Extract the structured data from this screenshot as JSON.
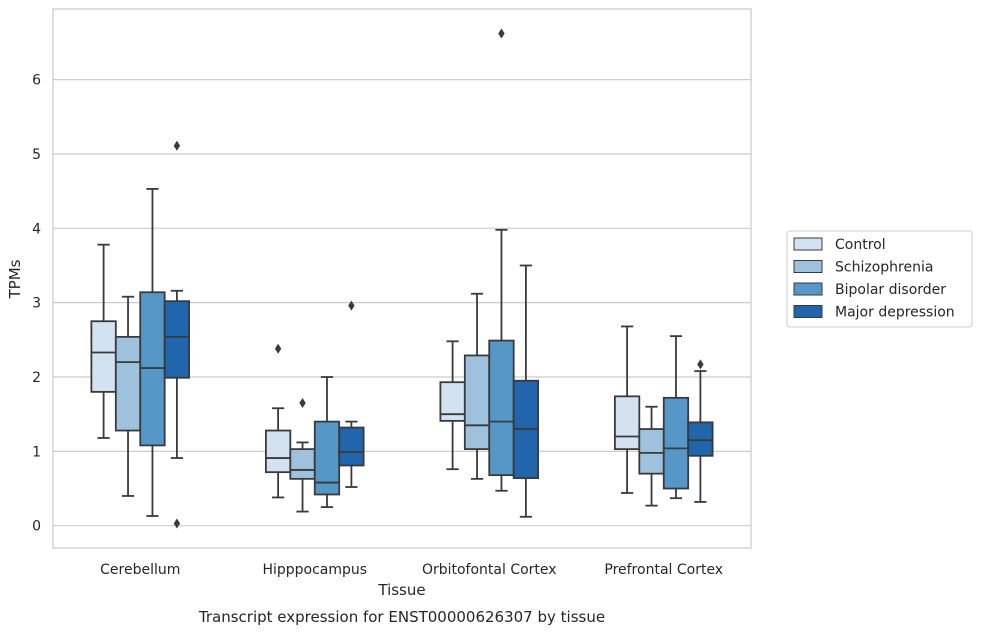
{
  "caption": "Transcript expression for ENST00000626307 by tissue",
  "chart_data": {
    "type": "box",
    "xlabel": "Tissue",
    "ylabel": "TPMs",
    "ylim": [
      -0.3,
      6.95
    ],
    "yticks": [
      0,
      1,
      2,
      3,
      4,
      5,
      6
    ],
    "grid": "horizontal",
    "legend_position": "right",
    "categories": [
      "Cerebellum",
      "Hipppocampus",
      "Orbitofontal Cortex",
      "Prefrontal Cortex"
    ],
    "series": [
      {
        "name": "Control",
        "color": "#d3e2f1",
        "boxes": [
          {
            "min": 1.18,
            "q1": 1.8,
            "median": 2.33,
            "q3": 2.75,
            "max": 3.78,
            "outliers": []
          },
          {
            "min": 0.38,
            "q1": 0.72,
            "median": 0.91,
            "q3": 1.28,
            "max": 1.58,
            "outliers": [
              2.38
            ]
          },
          {
            "min": 0.76,
            "q1": 1.41,
            "median": 1.5,
            "q3": 1.93,
            "max": 2.48,
            "outliers": []
          },
          {
            "min": 0.44,
            "q1": 1.03,
            "median": 1.2,
            "q3": 1.74,
            "max": 2.68,
            "outliers": []
          }
        ]
      },
      {
        "name": "Schizophrenia",
        "color": "#9ec2dd",
        "boxes": [
          {
            "min": 0.4,
            "q1": 1.28,
            "median": 2.2,
            "q3": 2.54,
            "max": 3.08,
            "outliers": []
          },
          {
            "min": 0.19,
            "q1": 0.63,
            "median": 0.75,
            "q3": 1.03,
            "max": 1.12,
            "outliers": [
              1.65
            ]
          },
          {
            "min": 0.63,
            "q1": 1.03,
            "median": 1.35,
            "q3": 2.29,
            "max": 3.12,
            "outliers": []
          },
          {
            "min": 0.27,
            "q1": 0.7,
            "median": 0.98,
            "q3": 1.3,
            "max": 1.6,
            "outliers": []
          }
        ]
      },
      {
        "name": "Bipolar disorder",
        "color": "#5598c8",
        "boxes": [
          {
            "min": 0.13,
            "q1": 1.08,
            "median": 2.12,
            "q3": 3.14,
            "max": 4.53,
            "outliers": []
          },
          {
            "min": 0.25,
            "q1": 0.42,
            "median": 0.58,
            "q3": 1.4,
            "max": 2.0,
            "outliers": []
          },
          {
            "min": 0.47,
            "q1": 0.68,
            "median": 1.4,
            "q3": 2.49,
            "max": 3.98,
            "outliers": [
              6.62
            ]
          },
          {
            "min": 0.37,
            "q1": 0.5,
            "median": 1.04,
            "q3": 1.72,
            "max": 2.55,
            "outliers": []
          }
        ]
      },
      {
        "name": "Major depression",
        "color": "#2166ac",
        "boxes": [
          {
            "min": 0.91,
            "q1": 1.99,
            "median": 2.54,
            "q3": 3.02,
            "max": 3.16,
            "outliers": [
              5.11,
              0.03
            ]
          },
          {
            "min": 0.52,
            "q1": 0.81,
            "median": 0.99,
            "q3": 1.32,
            "max": 1.4,
            "outliers": [
              2.96
            ]
          },
          {
            "min": 0.12,
            "q1": 0.64,
            "median": 1.3,
            "q3": 1.95,
            "max": 3.5,
            "outliers": []
          },
          {
            "min": 0.32,
            "q1": 0.94,
            "median": 1.15,
            "q3": 1.39,
            "max": 2.08,
            "outliers": [
              2.17
            ]
          }
        ]
      }
    ]
  }
}
